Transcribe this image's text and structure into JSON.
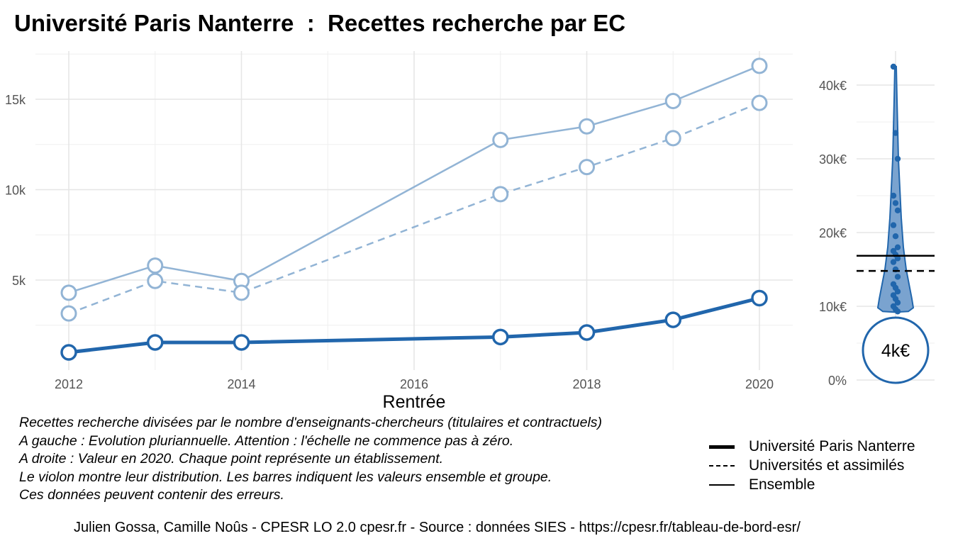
{
  "title": "Université Paris Nanterre  :  Recettes recherche par EC",
  "chart_data": [
    {
      "type": "line",
      "xlabel": "Rentrée",
      "x_ticks": [
        "2012",
        "2014",
        "2016",
        "2018",
        "2020"
      ],
      "y_ticks": [
        "5k",
        "10k",
        "15k"
      ],
      "xlim": [
        2012,
        2020
      ],
      "ylim": [
        0,
        17500
      ],
      "series": [
        {
          "name": "Université Paris Nanterre",
          "x": [
            2012,
            2013,
            2014,
            2017,
            2018,
            2019,
            2020
          ],
          "y": [
            1000,
            1550,
            1550,
            1850,
            2100,
            2800,
            4000
          ],
          "style": "solid-thick",
          "color": "#2166ac"
        },
        {
          "name": "Universités et assimilés",
          "x": [
            2012,
            2013,
            2014,
            2017,
            2018,
            2019,
            2020
          ],
          "y": [
            3150,
            4950,
            4300,
            9750,
            11250,
            12850,
            14800
          ],
          "style": "dashed",
          "color": "#92b4d5"
        },
        {
          "name": "Ensemble",
          "x": [
            2012,
            2013,
            2014,
            2017,
            2018,
            2019,
            2020
          ],
          "y": [
            4300,
            5800,
            4950,
            12750,
            13500,
            14900,
            16850
          ],
          "style": "solid",
          "color": "#92b4d5"
        }
      ]
    },
    {
      "type": "scatter",
      "subtype": "violin",
      "y_ticks": [
        "0%",
        "10k€",
        "20k€",
        "30k€",
        "40k€"
      ],
      "ylim": [
        0,
        42000
      ],
      "values": [
        42500,
        33500,
        30000,
        25000,
        24000,
        23000,
        21000,
        19500,
        18000,
        17500,
        17000,
        16500,
        16000,
        15000,
        14000,
        13000,
        12500,
        12000,
        11500,
        11000,
        10500,
        10000,
        9600,
        9300
      ],
      "reference_lines": [
        {
          "name": "Ensemble",
          "value": 16850,
          "style": "solid"
        },
        {
          "name": "Universités et assimilés",
          "value": 14800,
          "style": "dashed"
        }
      ],
      "highlight": {
        "value": 4000,
        "label": "4k€"
      },
      "color": "#2166ac"
    }
  ],
  "caption": [
    "Recettes recherche divisées par le nombre d'enseignants-chercheurs (titulaires et contractuels)",
    "A gauche : Evolution pluriannuelle. Attention : l'échelle ne commence pas à zéro.",
    "A droite : Valeur en 2020. Chaque point représente un établissement.",
    "Le violon montre leur distribution. Les barres indiquent les valeurs ensemble et groupe.",
    "Ces données peuvent contenir des erreurs."
  ],
  "legend": [
    "Université Paris Nanterre",
    "Universités et assimilés",
    "Ensemble"
  ],
  "footer": "Julien Gossa, Camille Noûs - CPESR LO 2.0 cpesr.fr - Source : données SIES - https://cpesr.fr/tableau-de-bord-esr/"
}
